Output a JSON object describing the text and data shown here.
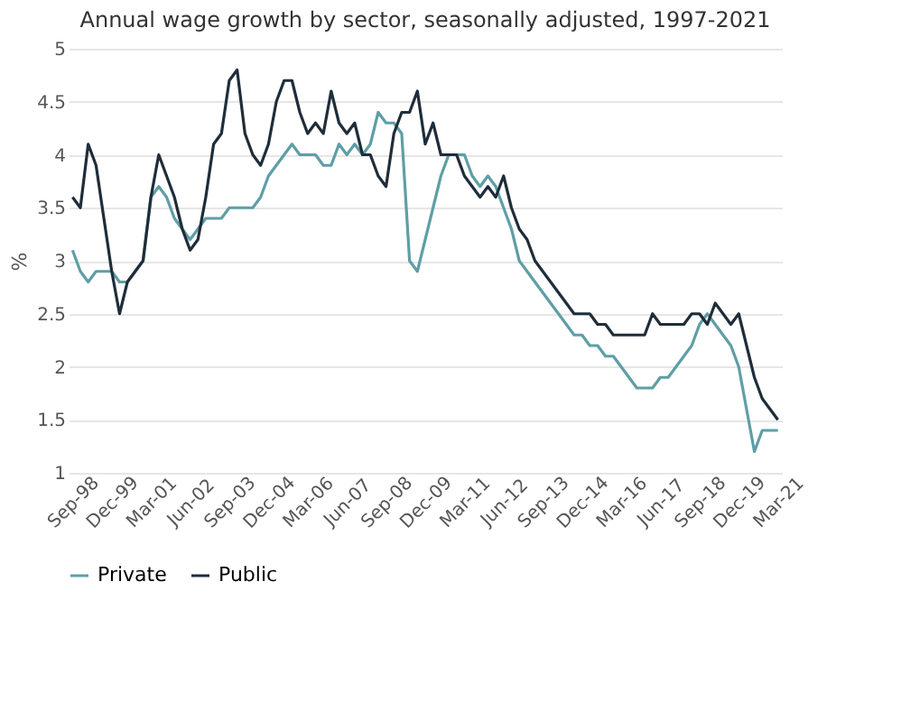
{
  "chart_data": {
    "type": "line",
    "title": "Annual wage growth by sector, seasonally adjusted, 1997-2021",
    "ylabel": "%",
    "categories": [
      "Sep-98",
      null,
      null,
      null,
      null,
      "Dec-99",
      null,
      null,
      null,
      null,
      "Mar-01",
      null,
      null,
      null,
      null,
      "Jun-02",
      null,
      null,
      null,
      null,
      "Sep-03",
      null,
      null,
      null,
      null,
      "Dec-04",
      null,
      null,
      null,
      null,
      "Mar-06",
      null,
      null,
      null,
      null,
      "Jun-07",
      null,
      null,
      null,
      null,
      "Sep-08",
      null,
      null,
      null,
      null,
      "Dec-09",
      null,
      null,
      null,
      null,
      "Mar-11",
      null,
      null,
      null,
      null,
      "Jun-12",
      null,
      null,
      null,
      null,
      "Sep-13",
      null,
      null,
      null,
      null,
      "Dec-14",
      null,
      null,
      null,
      null,
      "Mar-16",
      null,
      null,
      null,
      null,
      "Jun-17",
      null,
      null,
      null,
      null,
      "Sep-18",
      null,
      null,
      null,
      null,
      "Dec-19",
      null,
      null,
      null,
      null,
      "Mar-21"
    ],
    "series": [
      {
        "name": "Private",
        "color": "#5f9ea6",
        "values": [
          3.1,
          2.9,
          2.8,
          2.9,
          2.9,
          2.9,
          2.8,
          2.8,
          2.9,
          3.0,
          3.6,
          3.7,
          3.6,
          3.4,
          3.3,
          3.2,
          3.3,
          3.4,
          3.4,
          3.4,
          3.5,
          3.5,
          3.5,
          3.5,
          3.6,
          3.8,
          3.9,
          4.0,
          4.1,
          4.0,
          4.0,
          4.0,
          3.9,
          3.9,
          4.1,
          4.0,
          4.1,
          4.0,
          4.1,
          4.4,
          4.3,
          4.3,
          4.2,
          3.0,
          2.9,
          3.2,
          3.5,
          3.8,
          4.0,
          4.0,
          4.0,
          3.8,
          3.7,
          3.8,
          3.7,
          3.5,
          3.3,
          3.0,
          2.9,
          2.8,
          2.7,
          2.6,
          2.5,
          2.4,
          2.3,
          2.3,
          2.2,
          2.2,
          2.1,
          2.1,
          2.0,
          1.9,
          1.8,
          1.8,
          1.8,
          1.9,
          1.9,
          2.0,
          2.1,
          2.2,
          2.4,
          2.5,
          2.4,
          2.3,
          2.2,
          2.0,
          1.6,
          1.2,
          1.4,
          1.4,
          1.4
        ]
      },
      {
        "name": "Public",
        "color": "#1f2d3a",
        "values": [
          3.6,
          3.5,
          4.1,
          3.9,
          3.4,
          2.9,
          2.5,
          2.8,
          2.9,
          3.0,
          3.6,
          4.0,
          3.8,
          3.6,
          3.3,
          3.1,
          3.2,
          3.6,
          4.1,
          4.2,
          4.7,
          4.8,
          4.2,
          4.0,
          3.9,
          4.1,
          4.5,
          4.7,
          4.7,
          4.4,
          4.2,
          4.3,
          4.2,
          4.6,
          4.3,
          4.2,
          4.3,
          4.0,
          4.0,
          3.8,
          3.7,
          4.2,
          4.4,
          4.4,
          4.6,
          4.1,
          4.3,
          4.0,
          4.0,
          4.0,
          3.8,
          3.7,
          3.6,
          3.7,
          3.6,
          3.8,
          3.5,
          3.3,
          3.2,
          3.0,
          2.9,
          2.8,
          2.7,
          2.6,
          2.5,
          2.5,
          2.5,
          2.4,
          2.4,
          2.3,
          2.3,
          2.3,
          2.3,
          2.3,
          2.5,
          2.4,
          2.4,
          2.4,
          2.4,
          2.5,
          2.5,
          2.4,
          2.6,
          2.5,
          2.4,
          2.5,
          2.2,
          1.9,
          1.7,
          1.6,
          1.5
        ]
      }
    ],
    "ylim": [
      1,
      5
    ],
    "yticks": [
      1,
      1.5,
      2,
      2.5,
      3,
      3.5,
      4,
      4.5,
      5
    ],
    "grid": "y",
    "legend": "bottom",
    "marker": "none",
    "line_style": "solid"
  }
}
